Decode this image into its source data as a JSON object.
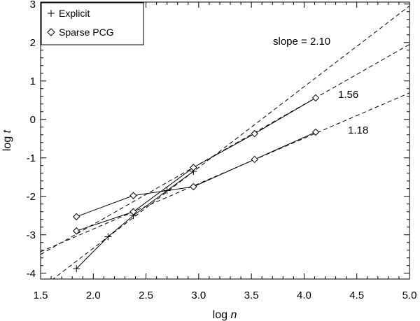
{
  "chart_data": {
    "type": "line",
    "xlabel": "log n",
    "xlabel_parts": {
      "prefix": "log ",
      "var": "n"
    },
    "ylabel": "log t",
    "ylabel_parts": {
      "prefix": "log ",
      "var": "t"
    },
    "xlim": [
      1.5,
      5.0
    ],
    "ylim": [
      -4.15,
      3.05
    ],
    "xticks": [
      1.5,
      2.0,
      2.5,
      3.0,
      3.5,
      4.0,
      4.5,
      5.0
    ],
    "xtick_labels": [
      "1.5",
      "2.0",
      "2.5",
      "3.0",
      "3.5",
      "4.0",
      "4.5",
      "5.0"
    ],
    "yticks": [
      -4,
      -3,
      -2,
      -1,
      0,
      1,
      2,
      3
    ],
    "ytick_labels": [
      "-4",
      "-3",
      "-2",
      "-1",
      "0",
      "1",
      "2",
      "3"
    ],
    "legend_position": "top-left",
    "grid": false,
    "legend": [
      {
        "label": "Explicit",
        "marker": "plus"
      },
      {
        "label": "Sparse PCG",
        "marker": "diamond"
      }
    ],
    "series": [
      {
        "name": "Explicit",
        "marker": "plus",
        "x": [
          1.84,
          2.14,
          2.38,
          2.7,
          2.95
        ],
        "y": [
          -3.88,
          -3.05,
          -2.5,
          -1.85,
          -1.35
        ]
      },
      {
        "marker": "diamond",
        "x": [
          1.84,
          2.38,
          2.95,
          3.53,
          4.11
        ],
        "y": [
          -2.9,
          -2.4,
          -1.25,
          -0.37,
          0.56
        ]
      },
      {
        "marker": "diamond",
        "x": [
          1.84,
          2.38,
          2.95,
          3.53,
          4.11
        ],
        "y": [
          -2.53,
          -1.98,
          -1.75,
          -1.04,
          -0.33
        ]
      }
    ],
    "fit_lines": [
      {
        "slope": 2.1,
        "intercept": -7.55,
        "label": "slope = 2.10"
      },
      {
        "slope": 1.56,
        "intercept": -5.85,
        "label": "1.56"
      },
      {
        "slope": 1.18,
        "intercept": -5.21,
        "label": "1.18"
      }
    ]
  }
}
